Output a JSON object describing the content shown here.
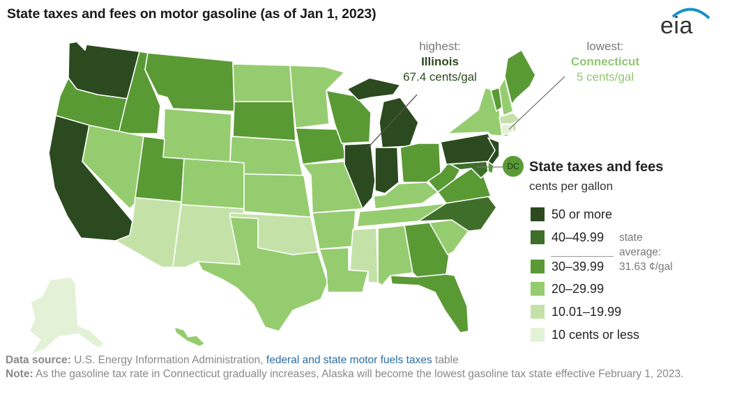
{
  "title": "State taxes and fees on motor gasoline (as of Jan 1, 2023)",
  "logo": {
    "text": "eia"
  },
  "callouts": {
    "highest": {
      "label": "highest:",
      "state": "Illinois",
      "value": "67.4 cents/gal"
    },
    "lowest": {
      "label": "lowest:",
      "state": "Connecticut",
      "value": "5 cents/gal"
    }
  },
  "dc_label": "DC",
  "legend": {
    "title": "State taxes and fees",
    "subtitle": "cents per gallon",
    "items": [
      {
        "label": "50 or more",
        "color": "#2c4a1f"
      },
      {
        "label": "40–49.99",
        "color": "#3f6e2a"
      },
      {
        "label": "30–39.99",
        "color": "#5a9a35"
      },
      {
        "label": "20–29.99",
        "color": "#96cc70"
      },
      {
        "label": "10.01–19.99",
        "color": "#c4e2a8"
      },
      {
        "label": "10 cents or less",
        "color": "#e3f1d6"
      }
    ],
    "average_note": [
      "state",
      "average:",
      "31.63 ¢/gal"
    ]
  },
  "footer": {
    "source_label": "Data source:",
    "source_text": " U.S. Energy Information Administration, ",
    "source_link": "federal and state motor fuels taxes",
    "source_tail": " table",
    "note_label": "Note:",
    "note_text": " As the gasoline tax rate in Connecticut gradually increases, Alaska will become the lowest gasoline tax state effective February 1, 2023."
  }
}
